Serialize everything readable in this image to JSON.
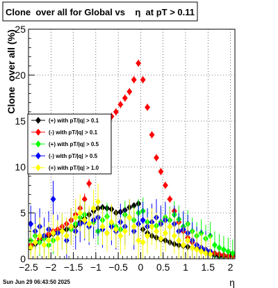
{
  "chart_data": {
    "type": "scatter",
    "title": "Clone  over all for Global vs    η  at pT > 0.11",
    "xlabel": "η",
    "ylabel": "Clone  over all (%)",
    "xlim": [
      -2.5,
      2.1
    ],
    "ylim": [
      0,
      25
    ],
    "x_ticks": [
      -2.5,
      -2,
      -1.5,
      -1,
      -0.5,
      0,
      0.5,
      1,
      1.5,
      2
    ],
    "x_tick_labels": [
      "−2.5",
      "−2",
      "−1.5",
      "−1",
      "−0.5",
      "0",
      "0.5",
      "1",
      "1.5",
      "2"
    ],
    "y_ticks": [
      0,
      5,
      10,
      15,
      20,
      25
    ],
    "y_tick_labels": [
      "0",
      "5",
      "10",
      "15",
      "20",
      "25"
    ],
    "grid": true,
    "legend_position": "middle-left",
    "timestamp": "Sun Jun 29 06:43:50 2025",
    "series": [
      {
        "name": "(+) with pT/|q| > 0.1",
        "color": "#000000",
        "x": [
          -2.45,
          -2.35,
          -2.25,
          -2.15,
          -2.05,
          -1.95,
          -1.85,
          -1.75,
          -1.65,
          -1.55,
          -1.45,
          -1.35,
          -1.25,
          -1.15,
          -1.05,
          -0.95,
          -0.85,
          -0.75,
          -0.65,
          -0.55,
          -0.45,
          -0.35,
          -0.25,
          -0.15,
          -0.05,
          0.05,
          0.15,
          0.25,
          0.35,
          0.45,
          0.55,
          0.65,
          0.75,
          0.85,
          0.95,
          1.05,
          1.15,
          1.25,
          1.35,
          1.45,
          1.55,
          1.65,
          1.75,
          1.85,
          1.95,
          2.05
        ],
        "y": [
          1.3,
          1.6,
          2.0,
          2.3,
          2.5,
          2.7,
          2.9,
          3.1,
          3.2,
          3.4,
          3.6,
          4.0,
          4.4,
          4.8,
          5.2,
          5.5,
          5.6,
          5.5,
          5.4,
          5.0,
          5.1,
          5.3,
          5.6,
          5.8,
          6.0,
          3.2,
          2.8,
          2.5,
          2.3,
          2.1,
          2.0,
          1.8,
          1.6,
          1.5,
          1.4,
          1.3,
          1.2,
          1.1,
          1.0,
          0.9,
          0.6,
          0.4,
          0.3,
          0.3,
          0.3,
          0.35
        ],
        "err": [
          0.4,
          0.5,
          0.5,
          0.6,
          0.6,
          0.6,
          0.6,
          0.6,
          0.5,
          0.5,
          0.5,
          0.5,
          0.5,
          0.5,
          0.4,
          0.3,
          0.3,
          0.3,
          0.3,
          0.3,
          0.3,
          0.3,
          0.3,
          0.3,
          0.3,
          0.3,
          0.3,
          0.3,
          0.3,
          0.3,
          0.3,
          0.3,
          0.3,
          0.3,
          0.3,
          0.3,
          0.3,
          0.3,
          0.3,
          0.3,
          0.2,
          0.2,
          0.2,
          0.2,
          0.2,
          0.2
        ]
      },
      {
        "name": "(-) with pT/|q| > 0.1",
        "color": "#ff0000",
        "x": [
          -2.45,
          -2.35,
          -2.25,
          -2.15,
          -2.05,
          -1.95,
          -1.85,
          -1.75,
          -1.65,
          -1.55,
          -1.45,
          -1.35,
          -1.25,
          -1.15,
          -1.05,
          -0.95,
          -0.85,
          -0.75,
          -0.65,
          -0.55,
          -0.45,
          -0.35,
          -0.25,
          -0.15,
          -0.05,
          0.05,
          0.15,
          0.25,
          0.35,
          0.45,
          0.55,
          0.65,
          0.75,
          0.85,
          0.95,
          1.05,
          1.15,
          1.25,
          1.35,
          1.45,
          1.55,
          1.65,
          1.75,
          1.85,
          1.95,
          2.05
        ],
        "y": [
          1.5,
          1.8,
          2.2,
          2.5,
          2.7,
          3.0,
          3.2,
          3.5,
          3.8,
          4.2,
          4.8,
          5.5,
          6.5,
          8.2,
          10.0,
          11.5,
          13.0,
          14.5,
          15.5,
          16.0,
          16.8,
          17.5,
          18.2,
          19.5,
          21.3,
          19.5,
          16.5,
          13.5,
          11.0,
          9.5,
          8.0,
          6.5,
          5.2,
          4.0,
          3.0,
          2.3,
          1.8,
          1.5,
          1.2,
          1.0,
          0.8,
          0.6,
          0.5,
          0.4,
          0.3,
          0.3
        ],
        "err": [
          0.4,
          0.5,
          0.5,
          0.6,
          0.6,
          0.6,
          0.6,
          0.6,
          0.6,
          0.6,
          0.6,
          0.6,
          0.6,
          0.5,
          0.4,
          0.4,
          0.4,
          0.4,
          0.4,
          0.4,
          0.4,
          0.4,
          0.4,
          0.4,
          0.4,
          0.4,
          0.4,
          0.4,
          0.4,
          0.4,
          0.4,
          0.4,
          0.4,
          0.4,
          0.4,
          0.3,
          0.3,
          0.3,
          0.3,
          0.3,
          0.3,
          0.3,
          0.2,
          0.2,
          0.2,
          0.2
        ]
      },
      {
        "name": "(+) with pT/|q| > 0.5",
        "color": "#00ff00",
        "x": [
          -2.45,
          -2.35,
          -2.25,
          -2.15,
          -2.05,
          -1.95,
          -1.85,
          -1.75,
          -1.65,
          -1.55,
          -1.45,
          -1.35,
          -1.25,
          -1.15,
          -1.05,
          -0.95,
          -0.85,
          -0.75,
          -0.65,
          -0.55,
          -0.45,
          -0.35,
          -0.25,
          -0.15,
          -0.05,
          0.05,
          0.15,
          0.25,
          0.35,
          0.45,
          0.55,
          0.65,
          0.75,
          0.85,
          0.95,
          1.05,
          1.15,
          1.25,
          1.35,
          1.45,
          1.55,
          1.65,
          1.75,
          1.85,
          1.95,
          2.05
        ],
        "y": [
          2.0,
          2.5,
          1.8,
          2.2,
          1.5,
          2.0,
          2.8,
          3.0,
          2.5,
          3.2,
          3.8,
          4.5,
          4.8,
          3.5,
          4.0,
          3.0,
          4.2,
          4.6,
          3.8,
          3.5,
          3.2,
          4.8,
          4.5,
          4.2,
          5.0,
          5.2,
          4.0,
          3.5,
          3.6,
          4.0,
          4.5,
          4.2,
          4.8,
          4.3,
          3.5,
          3.8,
          3.0,
          2.5,
          2.8,
          2.2,
          2.5,
          1.5,
          1.2,
          1.0,
          0.8,
          0.6
        ],
        "err": [
          1.5,
          1.5,
          1.5,
          1.5,
          1.5,
          1.5,
          1.5,
          1.5,
          1.5,
          1.5,
          1.5,
          1.5,
          1.5,
          1.5,
          1.5,
          1.5,
          1.5,
          1.5,
          1.5,
          1.5,
          1.5,
          1.5,
          1.5,
          1.5,
          1.5,
          1.5,
          1.5,
          1.5,
          1.5,
          1.5,
          1.5,
          1.5,
          1.5,
          1.5,
          1.5,
          1.5,
          1.5,
          1.5,
          1.5,
          1.5,
          1.5,
          1.5,
          1.5,
          1.5,
          1.5,
          1.5
        ]
      },
      {
        "name": "(-) with pT/|q| > 0.5",
        "color": "#0000ff",
        "x": [
          -2.45,
          -2.35,
          -2.25,
          -2.15,
          -2.05,
          -1.95,
          -1.85,
          -1.75,
          -1.65,
          -1.55,
          -1.45,
          -1.35,
          -1.25,
          -1.15,
          -1.05,
          -0.95,
          -0.85,
          -0.75,
          -0.65,
          -0.55,
          -0.45,
          -0.35,
          -0.25,
          -0.15,
          -0.05,
          0.05,
          0.15,
          0.25,
          0.35,
          0.45,
          0.55,
          0.65,
          0.75,
          0.85,
          0.95,
          1.05,
          1.15,
          1.25,
          1.35,
          1.45,
          1.55
        ],
        "y": [
          3.8,
          3.0,
          3.5,
          2.5,
          3.2,
          6.5,
          2.8,
          3.0,
          2.0,
          3.5,
          3.0,
          3.8,
          4.0,
          3.5,
          4.2,
          4.5,
          3.2,
          2.8,
          3.5,
          3.0,
          4.0,
          3.5,
          4.5,
          3.0,
          3.8,
          4.2,
          3.5,
          4.0,
          4.5,
          3.8,
          4.2,
          3.5,
          3.8,
          3.0,
          3.2,
          2.8,
          2.0,
          1.5,
          1.2,
          1.0,
          0.8
        ],
        "err": [
          2.0,
          2.0,
          2.0,
          2.0,
          2.0,
          2.0,
          2.0,
          2.0,
          2.0,
          2.0,
          2.0,
          2.0,
          2.0,
          2.0,
          2.0,
          2.0,
          2.0,
          2.0,
          2.0,
          2.0,
          2.0,
          2.0,
          2.0,
          2.0,
          2.0,
          2.0,
          2.0,
          2.0,
          2.0,
          2.0,
          2.0,
          2.0,
          2.0,
          2.0,
          2.0,
          2.0,
          2.0,
          2.0,
          2.0,
          2.0,
          2.0
        ]
      },
      {
        "name": "(+) with pT/|q| > 1.0",
        "color": "#ffff00",
        "x": [
          -2.45,
          -2.35,
          -2.25,
          -2.15,
          -2.05,
          -1.95,
          -1.85,
          -1.75,
          -1.65,
          -1.55,
          -1.45,
          -1.35,
          -1.25,
          -1.15,
          -1.05,
          -0.95,
          -0.85,
          -0.75,
          -0.65,
          -0.55,
          -0.45,
          -0.35,
          -0.25,
          -0.15,
          -0.05,
          0.05,
          0.15,
          0.25,
          0.35,
          0.45,
          0.55,
          0.65,
          0.75,
          0.85,
          0.95,
          1.05,
          1.15,
          1.25,
          1.35,
          1.45,
          1.55
        ],
        "y": [
          1.2,
          1.8,
          2.5,
          1.5,
          2.0,
          2.8,
          2.2,
          3.0,
          2.5,
          3.5,
          4.5,
          5.0,
          4.2,
          3.8,
          5.5,
          6.2,
          3.5,
          2.8,
          4.0,
          3.2,
          2.5,
          3.0,
          4.5,
          3.5,
          2.0,
          1.8,
          2.5,
          3.5,
          3.0,
          2.2,
          2.8,
          3.5,
          2.5,
          2.0,
          1.5,
          2.0,
          1.2,
          1.0,
          0.8,
          0.6,
          0.5
        ],
        "err": [
          2.0,
          2.0,
          2.0,
          2.0,
          2.0,
          2.0,
          2.0,
          2.0,
          2.0,
          2.0,
          2.0,
          2.0,
          2.0,
          2.0,
          2.0,
          2.0,
          2.0,
          2.0,
          2.0,
          2.0,
          2.0,
          2.0,
          2.0,
          2.0,
          2.0,
          2.0,
          2.0,
          2.0,
          2.0,
          2.0,
          2.0,
          2.0,
          2.0,
          2.0,
          2.0,
          2.0,
          2.0,
          2.0,
          2.0,
          2.0,
          2.0
        ]
      }
    ]
  }
}
